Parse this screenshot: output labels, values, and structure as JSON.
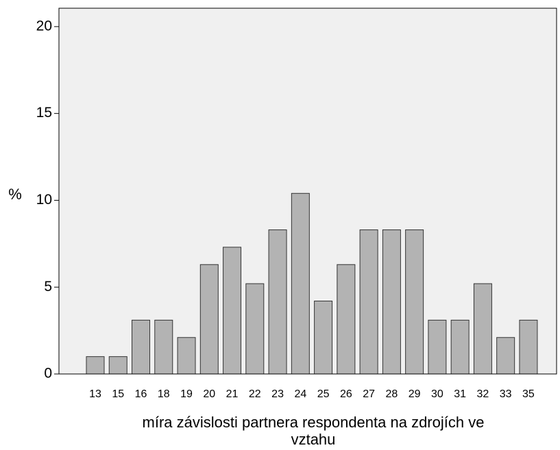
{
  "chart_data": {
    "type": "bar",
    "y_label": "%",
    "x_label": [
      "míra závislosti partnera respondenta na zdrojích ve",
      "vztahu"
    ],
    "categories": [
      "13",
      "15",
      "16",
      "18",
      "19",
      "20",
      "21",
      "22",
      "23",
      "24",
      "25",
      "26",
      "27",
      "28",
      "29",
      "30",
      "31",
      "32",
      "33",
      "35"
    ],
    "values": [
      1.0,
      1.0,
      3.1,
      3.1,
      2.1,
      6.3,
      7.3,
      5.2,
      8.3,
      10.4,
      4.2,
      6.3,
      8.3,
      8.3,
      8.3,
      3.1,
      3.1,
      5.2,
      2.1,
      3.1
    ],
    "color": "#b3b3b3",
    "ylim": [
      0,
      21.06
    ],
    "yticks": [
      0,
      5,
      10,
      15,
      20
    ]
  }
}
